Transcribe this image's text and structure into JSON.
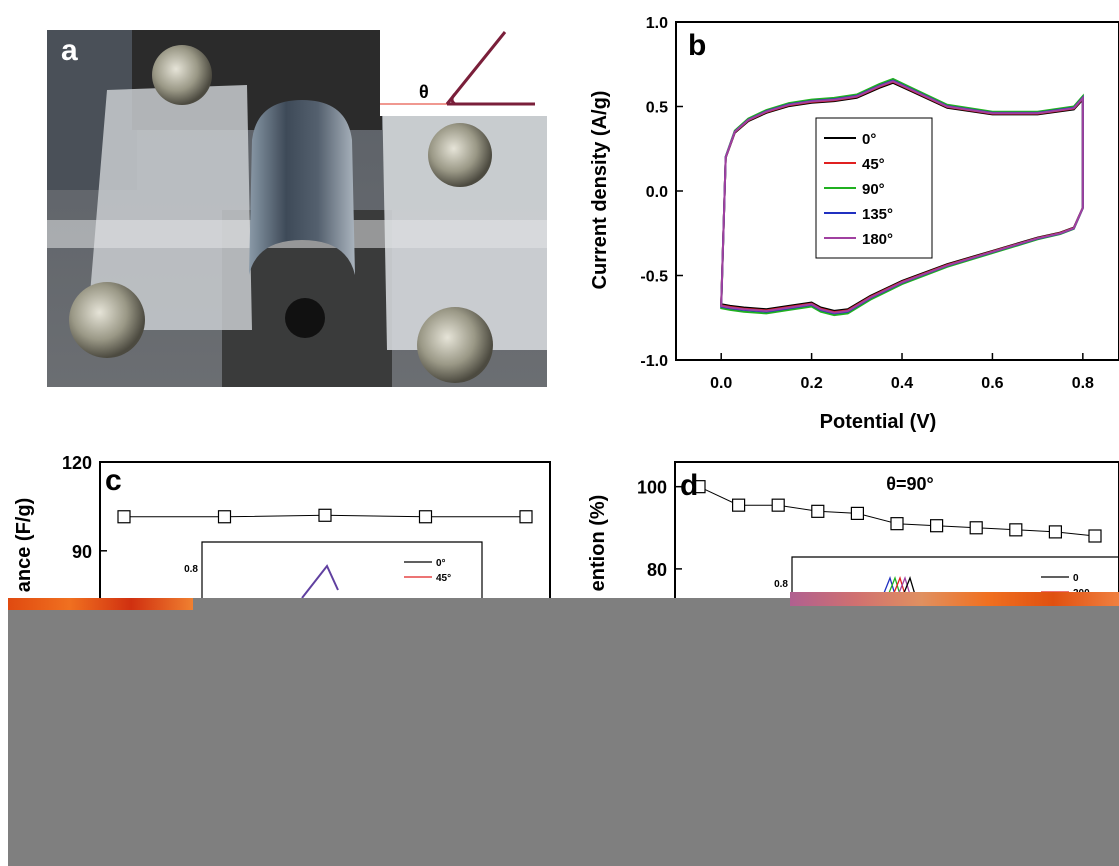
{
  "panels": {
    "a": {
      "label": "a",
      "theta": "θ"
    },
    "b": {
      "label": "b"
    },
    "c": {
      "label": "c"
    },
    "d": {
      "label": "d",
      "annotation": "θ=90°"
    }
  },
  "colors": {
    "s0": "#000000",
    "s45": "#e02020",
    "s90": "#20b020",
    "s135": "#2030c0",
    "s180": "#a040a0",
    "bend_line": "#7a1f3a"
  },
  "chart_data": [
    {
      "id": "b",
      "type": "line",
      "xlabel": "Potential (V)",
      "ylabel": "Current density (A/g)",
      "xlim": [
        -0.1,
        0.88
      ],
      "ylim": [
        -1.0,
        1.0
      ],
      "xticks": [
        "0.0",
        "0.2",
        "0.4",
        "0.6",
        "0.8"
      ],
      "xtick_values": [
        0.0,
        0.2,
        0.4,
        0.6,
        0.8
      ],
      "yticks": [
        "1.0",
        "0.5",
        "0.0",
        "-0.5",
        "-1.0"
      ],
      "ytick_values": [
        1.0,
        0.5,
        0.0,
        -0.5,
        -1.0
      ],
      "legend": {
        "placement": "center"
      },
      "series": [
        {
          "name": "0°",
          "color": "#000000",
          "scale": 0.985,
          "x": [
            0.0,
            0.01,
            0.03,
            0.06,
            0.1,
            0.15,
            0.2,
            0.25,
            0.3,
            0.35,
            0.38,
            0.42,
            0.5,
            0.6,
            0.7,
            0.78,
            0.8,
            0.8,
            0.78,
            0.75,
            0.7,
            0.6,
            0.5,
            0.4,
            0.33,
            0.28,
            0.25,
            0.22,
            0.2,
            0.15,
            0.1,
            0.05,
            0.02,
            0.0
          ],
          "y": [
            -0.68,
            0.2,
            0.35,
            0.42,
            0.47,
            0.51,
            0.53,
            0.54,
            0.56,
            0.62,
            0.65,
            0.6,
            0.5,
            0.46,
            0.46,
            0.49,
            0.55,
            -0.1,
            -0.22,
            -0.25,
            -0.28,
            -0.36,
            -0.44,
            -0.54,
            -0.63,
            -0.71,
            -0.72,
            -0.7,
            -0.67,
            -0.69,
            -0.71,
            -0.7,
            -0.69,
            -0.68
          ]
        },
        {
          "name": "45°",
          "color": "#e02020",
          "scale": 0.995,
          "x": [
            0.0,
            0.01,
            0.03,
            0.06,
            0.1,
            0.15,
            0.2,
            0.25,
            0.3,
            0.35,
            0.38,
            0.42,
            0.5,
            0.6,
            0.7,
            0.78,
            0.8,
            0.8,
            0.78,
            0.75,
            0.7,
            0.6,
            0.5,
            0.4,
            0.33,
            0.28,
            0.25,
            0.22,
            0.2,
            0.15,
            0.1,
            0.05,
            0.02,
            0.0
          ],
          "y": [
            -0.68,
            0.2,
            0.35,
            0.42,
            0.47,
            0.51,
            0.53,
            0.54,
            0.56,
            0.62,
            0.65,
            0.6,
            0.5,
            0.46,
            0.46,
            0.49,
            0.55,
            -0.1,
            -0.22,
            -0.25,
            -0.28,
            -0.36,
            -0.44,
            -0.54,
            -0.63,
            -0.71,
            -0.72,
            -0.7,
            -0.67,
            -0.69,
            -0.71,
            -0.7,
            -0.69,
            -0.68
          ]
        },
        {
          "name": "90°",
          "color": "#20b020",
          "scale": 1.02,
          "x": [
            0.0,
            0.01,
            0.03,
            0.06,
            0.1,
            0.15,
            0.2,
            0.25,
            0.3,
            0.35,
            0.38,
            0.42,
            0.5,
            0.6,
            0.7,
            0.78,
            0.8,
            0.8,
            0.78,
            0.75,
            0.7,
            0.6,
            0.5,
            0.4,
            0.33,
            0.28,
            0.25,
            0.22,
            0.2,
            0.15,
            0.1,
            0.05,
            0.02,
            0.0
          ],
          "y": [
            -0.68,
            0.2,
            0.35,
            0.42,
            0.47,
            0.51,
            0.53,
            0.54,
            0.56,
            0.62,
            0.65,
            0.6,
            0.5,
            0.46,
            0.46,
            0.49,
            0.55,
            -0.1,
            -0.22,
            -0.25,
            -0.28,
            -0.36,
            -0.44,
            -0.54,
            -0.63,
            -0.71,
            -0.72,
            -0.7,
            -0.67,
            -0.69,
            -0.71,
            -0.7,
            -0.69,
            -0.68
          ]
        },
        {
          "name": "135°",
          "color": "#2030c0",
          "scale": 1.005,
          "x": [
            0.0,
            0.01,
            0.03,
            0.06,
            0.1,
            0.15,
            0.2,
            0.25,
            0.3,
            0.35,
            0.38,
            0.42,
            0.5,
            0.6,
            0.7,
            0.78,
            0.8,
            0.8,
            0.78,
            0.75,
            0.7,
            0.6,
            0.5,
            0.4,
            0.33,
            0.28,
            0.25,
            0.22,
            0.2,
            0.15,
            0.1,
            0.05,
            0.02,
            0.0
          ],
          "y": [
            -0.68,
            0.2,
            0.35,
            0.42,
            0.47,
            0.51,
            0.53,
            0.54,
            0.56,
            0.62,
            0.65,
            0.6,
            0.5,
            0.46,
            0.46,
            0.49,
            0.55,
            -0.1,
            -0.22,
            -0.25,
            -0.28,
            -0.36,
            -0.44,
            -0.54,
            -0.63,
            -0.71,
            -0.72,
            -0.7,
            -0.67,
            -0.69,
            -0.71,
            -0.7,
            -0.69,
            -0.68
          ]
        },
        {
          "name": "180°",
          "color": "#a040a0",
          "scale": 1.0,
          "x": [
            0.0,
            0.01,
            0.03,
            0.06,
            0.1,
            0.15,
            0.2,
            0.25,
            0.3,
            0.35,
            0.38,
            0.42,
            0.5,
            0.6,
            0.7,
            0.78,
            0.8,
            0.8,
            0.78,
            0.75,
            0.7,
            0.6,
            0.5,
            0.4,
            0.33,
            0.28,
            0.25,
            0.22,
            0.2,
            0.15,
            0.1,
            0.05,
            0.02,
            0.0
          ],
          "y": [
            -0.68,
            0.2,
            0.35,
            0.42,
            0.47,
            0.51,
            0.53,
            0.54,
            0.56,
            0.62,
            0.65,
            0.6,
            0.5,
            0.46,
            0.46,
            0.49,
            0.55,
            -0.1,
            -0.22,
            -0.25,
            -0.28,
            -0.36,
            -0.44,
            -0.54,
            -0.63,
            -0.71,
            -0.72,
            -0.7,
            -0.67,
            -0.69,
            -0.71,
            -0.7,
            -0.69,
            -0.68
          ]
        }
      ]
    },
    {
      "id": "c",
      "type": "line",
      "ylabel_visible": "ance (F/g)",
      "yticks": [
        "120",
        "90"
      ],
      "ytick_values": [
        120,
        90
      ],
      "ylim_visible": [
        70,
        120
      ],
      "series": [
        {
          "name": "capacitance",
          "marker": "open-square",
          "x": [
            0,
            1,
            2,
            3,
            4
          ],
          "y": [
            101.5,
            101.5,
            102,
            101.5,
            101.5
          ]
        }
      ],
      "inset": {
        "ytick": "0.8",
        "legend": [
          "0°",
          "45°"
        ],
        "legend_colors": [
          "#000000",
          "#e02020"
        ]
      }
    },
    {
      "id": "d",
      "type": "line",
      "ylabel_visible": "ention (%)",
      "yticks": [
        "100",
        "80"
      ],
      "ytick_values": [
        100,
        80
      ],
      "ylim_visible": [
        70,
        106
      ],
      "series": [
        {
          "name": "retention",
          "marker": "open-square",
          "x": [
            0,
            1,
            2,
            3,
            4,
            5,
            6,
            7,
            8,
            9,
            10
          ],
          "y": [
            100,
            95.5,
            95.5,
            94,
            93.5,
            91,
            90.5,
            90,
            89.5,
            89,
            88
          ]
        }
      ],
      "inset": {
        "ytick": "0.8",
        "legend": [
          "0",
          "200"
        ],
        "legend_colors": [
          "#000000",
          "#e02020"
        ]
      }
    }
  ]
}
